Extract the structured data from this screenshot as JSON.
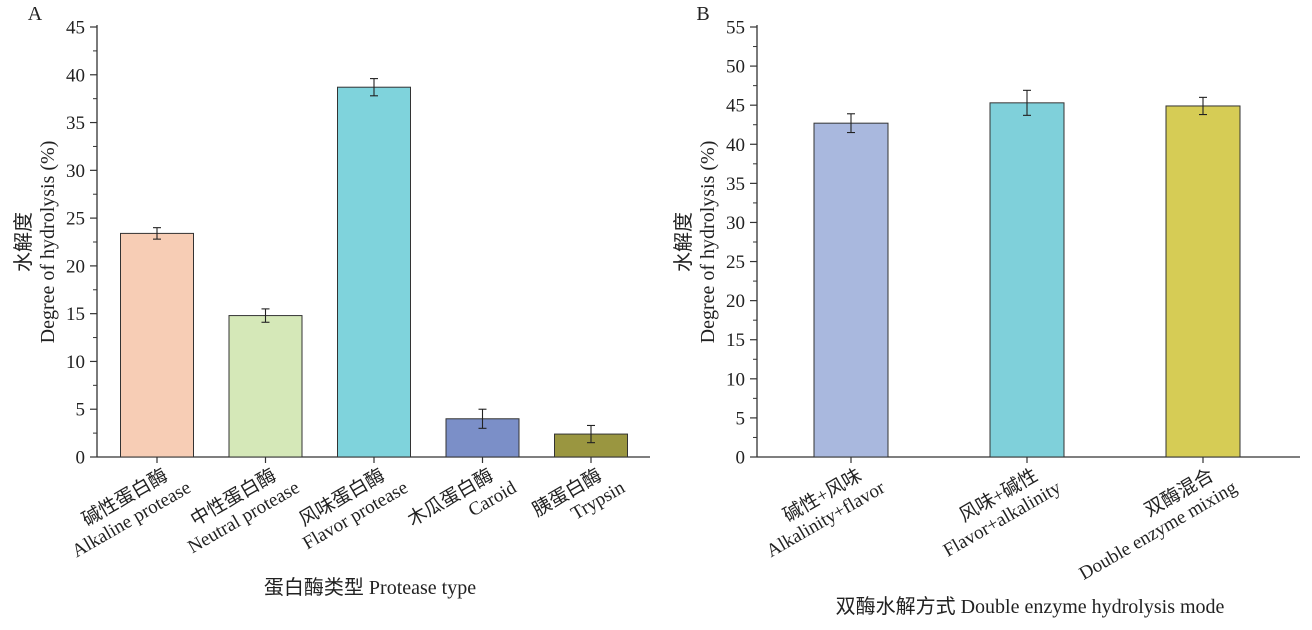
{
  "chart_data": [
    {
      "type": "bar",
      "panel_label": "A",
      "title": "",
      "categories": [
        [
          "碱性蛋白酶",
          "Alkaline protease"
        ],
        [
          "中性蛋白酶",
          "Neutral protease"
        ],
        [
          "风味蛋白酶",
          "Flavor protease"
        ],
        [
          "木瓜蛋白酶",
          "Caroid"
        ],
        [
          "胰蛋白酶",
          "Trypsin"
        ]
      ],
      "values": [
        23.4,
        14.8,
        38.7,
        4.0,
        2.4
      ],
      "errors": [
        0.6,
        0.7,
        0.9,
        1.0,
        0.9
      ],
      "colors": [
        "#f7cdb5",
        "#d5e8b8",
        "#7fd3dc",
        "#7b8fc8",
        "#9a9640"
      ],
      "xlabel": "蛋白酶类型 Protease type",
      "ylabel": [
        "水解度",
        "Degree of hydrolysis (%)"
      ],
      "ylim": [
        0,
        45
      ],
      "yticks": [
        0,
        5,
        10,
        15,
        20,
        25,
        30,
        35,
        40,
        45
      ],
      "grid": false
    },
    {
      "type": "bar",
      "panel_label": "B",
      "title": "",
      "categories": [
        [
          "碱性+风味",
          "Alkalinity+flavor"
        ],
        [
          "风味+碱性",
          "Flavor+alkalinity"
        ],
        [
          "双酶混合",
          "Double enzyme mixing"
        ]
      ],
      "values": [
        42.7,
        45.3,
        44.9
      ],
      "errors": [
        1.2,
        1.6,
        1.1
      ],
      "colors": [
        "#a9b8de",
        "#7fd0da",
        "#d6cc55"
      ],
      "xlabel": "双酶水解方式 Double enzyme hydrolysis mode",
      "ylabel": [
        "水解度",
        "Degree of hydrolysis (%)"
      ],
      "ylim": [
        0,
        55
      ],
      "yticks": [
        0,
        5,
        10,
        15,
        20,
        25,
        30,
        35,
        40,
        45,
        50,
        55
      ],
      "grid": false
    }
  ]
}
